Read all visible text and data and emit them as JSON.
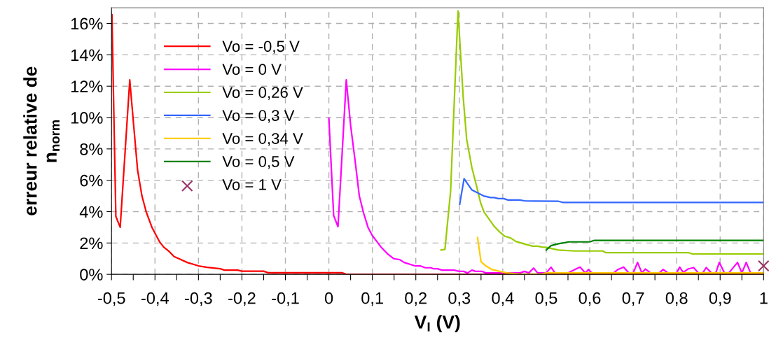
{
  "chart_data": {
    "type": "line",
    "xlabel": "V$_{I}$ (V)",
    "ylabel": "erreur relative de\nn$_{norm}$",
    "xlim": [
      -0.5,
      1
    ],
    "ylim": [
      0,
      17
    ],
    "xticks": [
      {
        "value": -0.5,
        "label": "-0,5"
      },
      {
        "value": -0.45,
        "label": null
      },
      {
        "value": -0.4,
        "label": "-0,4"
      },
      {
        "value": -0.35,
        "label": null
      },
      {
        "value": -0.3,
        "label": "-0,3"
      },
      {
        "value": -0.25,
        "label": null
      },
      {
        "value": -0.2,
        "label": "-0,2"
      },
      {
        "value": -0.15,
        "label": null
      },
      {
        "value": -0.1,
        "label": "-0,1"
      },
      {
        "value": -0.05,
        "label": null
      },
      0,
      {
        "value": 0.05,
        "label": null
      },
      {
        "value": 0.1,
        "label": "0,1"
      },
      {
        "value": 0.15,
        "label": null
      },
      {
        "value": 0.2,
        "label": "0,2"
      },
      {
        "value": 0.25,
        "label": null
      },
      {
        "value": 0.3,
        "label": "0,3"
      },
      {
        "value": 0.35,
        "label": null
      },
      {
        "value": 0.4,
        "label": "0,4"
      },
      {
        "value": 0.45,
        "label": null
      },
      {
        "value": 0.5,
        "label": "0,5"
      },
      {
        "value": 0.55,
        "label": null
      },
      {
        "value": 0.6,
        "label": "0,6"
      },
      {
        "value": 0.65,
        "label": null
      },
      {
        "value": 0.7,
        "label": "0,7"
      },
      {
        "value": 0.75,
        "label": null
      },
      {
        "value": 0.8,
        "label": "0,8"
      },
      {
        "value": 0.85,
        "label": null
      },
      {
        "value": 0.9,
        "label": "0,9"
      },
      {
        "value": 0.95,
        "label": null
      },
      1
    ],
    "yticks": [
      {
        "value": 0,
        "label": "0%"
      },
      {
        "value": 2,
        "label": "2%"
      },
      {
        "value": 4,
        "label": "4%"
      },
      {
        "value": 6,
        "label": "6%"
      },
      {
        "value": 8,
        "label": "8%"
      },
      {
        "value": 10,
        "label": "10%"
      },
      {
        "value": 12,
        "label": "12%"
      },
      {
        "value": 14,
        "label": "14%"
      },
      {
        "value": 16,
        "label": "16%"
      }
    ],
    "grid": true,
    "legend": "top left",
    "line_style": "solid",
    "series": [
      {
        "name": "Vo = -0,5 V",
        "color": "#ff0000",
        "x": [
          -0.499,
          -0.49,
          -0.48,
          -0.458,
          -0.449,
          -0.44,
          -0.43,
          -0.42,
          -0.407,
          -0.39,
          -0.38,
          -0.369,
          -0.356,
          -0.345,
          -0.326,
          -0.3,
          -0.28,
          -0.25,
          -0.24,
          -0.21,
          -0.2,
          -0.15,
          -0.14,
          0.03,
          0.04,
          1.0
        ],
        "values": [
          16.55,
          3.7,
          3.0,
          12.4,
          9.5,
          6.65,
          5.0,
          3.97,
          3.0,
          2.1,
          1.74,
          1.5,
          1.13,
          1.0,
          0.76,
          0.54,
          0.45,
          0.36,
          0.27,
          0.27,
          0.2,
          0.2,
          0.1,
          0.1,
          0.0,
          0.0
        ]
      },
      {
        "name": "Vo = 0 V",
        "color": "#ff00ff",
        "x": [
          0.0,
          0.011,
          0.021,
          0.04,
          0.05,
          0.061,
          0.07,
          0.08,
          0.09,
          0.1,
          0.12,
          0.136,
          0.149,
          0.163,
          0.173,
          0.198,
          0.21,
          0.222,
          0.235,
          0.24,
          0.25,
          0.26,
          0.288,
          0.3,
          0.31,
          0.319,
          0.329,
          0.337,
          0.353,
          0.361,
          0.43,
          0.44,
          0.45,
          0.46,
          0.471,
          0.48,
          0.5,
          0.511,
          0.52,
          0.55,
          0.57,
          0.578,
          0.59,
          0.597,
          0.605,
          0.655,
          0.665,
          0.678,
          0.69,
          0.7,
          0.71,
          0.72,
          0.728,
          0.74,
          0.76,
          0.769,
          0.78,
          0.8,
          0.807,
          0.815,
          0.826,
          0.839,
          0.85,
          0.86,
          0.868,
          0.88,
          0.89,
          0.898,
          0.91,
          0.92,
          0.94,
          0.95,
          0.96,
          0.97,
          0.995
        ],
        "values": [
          9.95,
          3.75,
          3.04,
          12.4,
          9.5,
          7.1,
          5.0,
          3.9,
          3.0,
          2.47,
          1.74,
          1.28,
          1.0,
          0.94,
          0.76,
          0.54,
          0.54,
          0.42,
          0.42,
          0.36,
          0.36,
          0.27,
          0.27,
          0.19,
          0.19,
          0.09,
          0.27,
          0.19,
          0.19,
          0.09,
          0.09,
          0.09,
          0.19,
          0.09,
          0.4,
          0.09,
          0.09,
          0.46,
          0.09,
          0.09,
          0.36,
          0.46,
          0.09,
          0.31,
          0.09,
          0.09,
          0.31,
          0.46,
          0.09,
          0.09,
          0.76,
          0.09,
          0.34,
          0.09,
          0.09,
          0.31,
          0.09,
          0.09,
          0.46,
          0.12,
          0.34,
          0.43,
          0.09,
          0.09,
          0.43,
          0.09,
          0.09,
          0.76,
          0.09,
          0.09,
          0.76,
          0.09,
          0.76,
          0.09,
          0.09
        ]
      },
      {
        "name": "Vo = 0,26 V",
        "color": "#99cc00",
        "x": [
          0.258,
          0.267,
          0.28,
          0.297,
          0.309,
          0.317,
          0.329,
          0.34,
          0.349,
          0.357,
          0.369,
          0.38,
          0.393,
          0.404,
          0.418,
          0.43,
          0.452,
          0.469,
          0.48,
          0.49,
          0.5,
          0.528,
          0.565,
          0.63,
          0.637,
          0.828,
          0.836,
          1.0
        ],
        "values": [
          1.55,
          1.6,
          5.3,
          16.8,
          11.3,
          8.6,
          6.8,
          5.6,
          4.56,
          3.97,
          3.5,
          3.07,
          2.7,
          2.44,
          2.32,
          2.1,
          1.92,
          1.8,
          1.8,
          1.74,
          1.72,
          1.55,
          1.49,
          1.49,
          1.38,
          1.38,
          1.3,
          1.3
        ]
      },
      {
        "name": "Vo = 0,3 V",
        "color": "#3366ff",
        "x": [
          0.301,
          0.311,
          0.329,
          0.356,
          0.372,
          0.38,
          0.39,
          0.402,
          0.412,
          0.439,
          0.452,
          0.528,
          0.538,
          1.0
        ],
        "values": [
          4.48,
          6.1,
          5.38,
          5.0,
          4.9,
          4.9,
          4.83,
          4.83,
          4.74,
          4.74,
          4.68,
          4.66,
          4.59,
          4.59
        ]
      },
      {
        "name": "Vo = 0,34 V",
        "color": "#ffcc00",
        "x": [
          0.342,
          0.35,
          0.361,
          0.375,
          0.393,
          0.41,
          0.44,
          0.49,
          0.5,
          1.0
        ],
        "values": [
          2.35,
          0.8,
          0.54,
          0.31,
          0.19,
          0.09,
          0.01,
          0.01,
          0.09,
          0.09
        ]
      },
      {
        "name": "Vo = 0,5 V",
        "color": "#008000",
        "x": [
          0.5,
          0.511,
          0.528,
          0.538,
          0.552,
          0.6,
          0.611,
          1.0
        ],
        "values": [
          1.55,
          1.83,
          1.95,
          2.0,
          2.07,
          2.07,
          2.17,
          2.17
        ]
      },
      {
        "name": "Vo = 1 V",
        "type": "scatter",
        "marker": "cross",
        "color": "#993366",
        "x": [
          1.0
        ],
        "values": [
          0.54
        ]
      }
    ]
  }
}
